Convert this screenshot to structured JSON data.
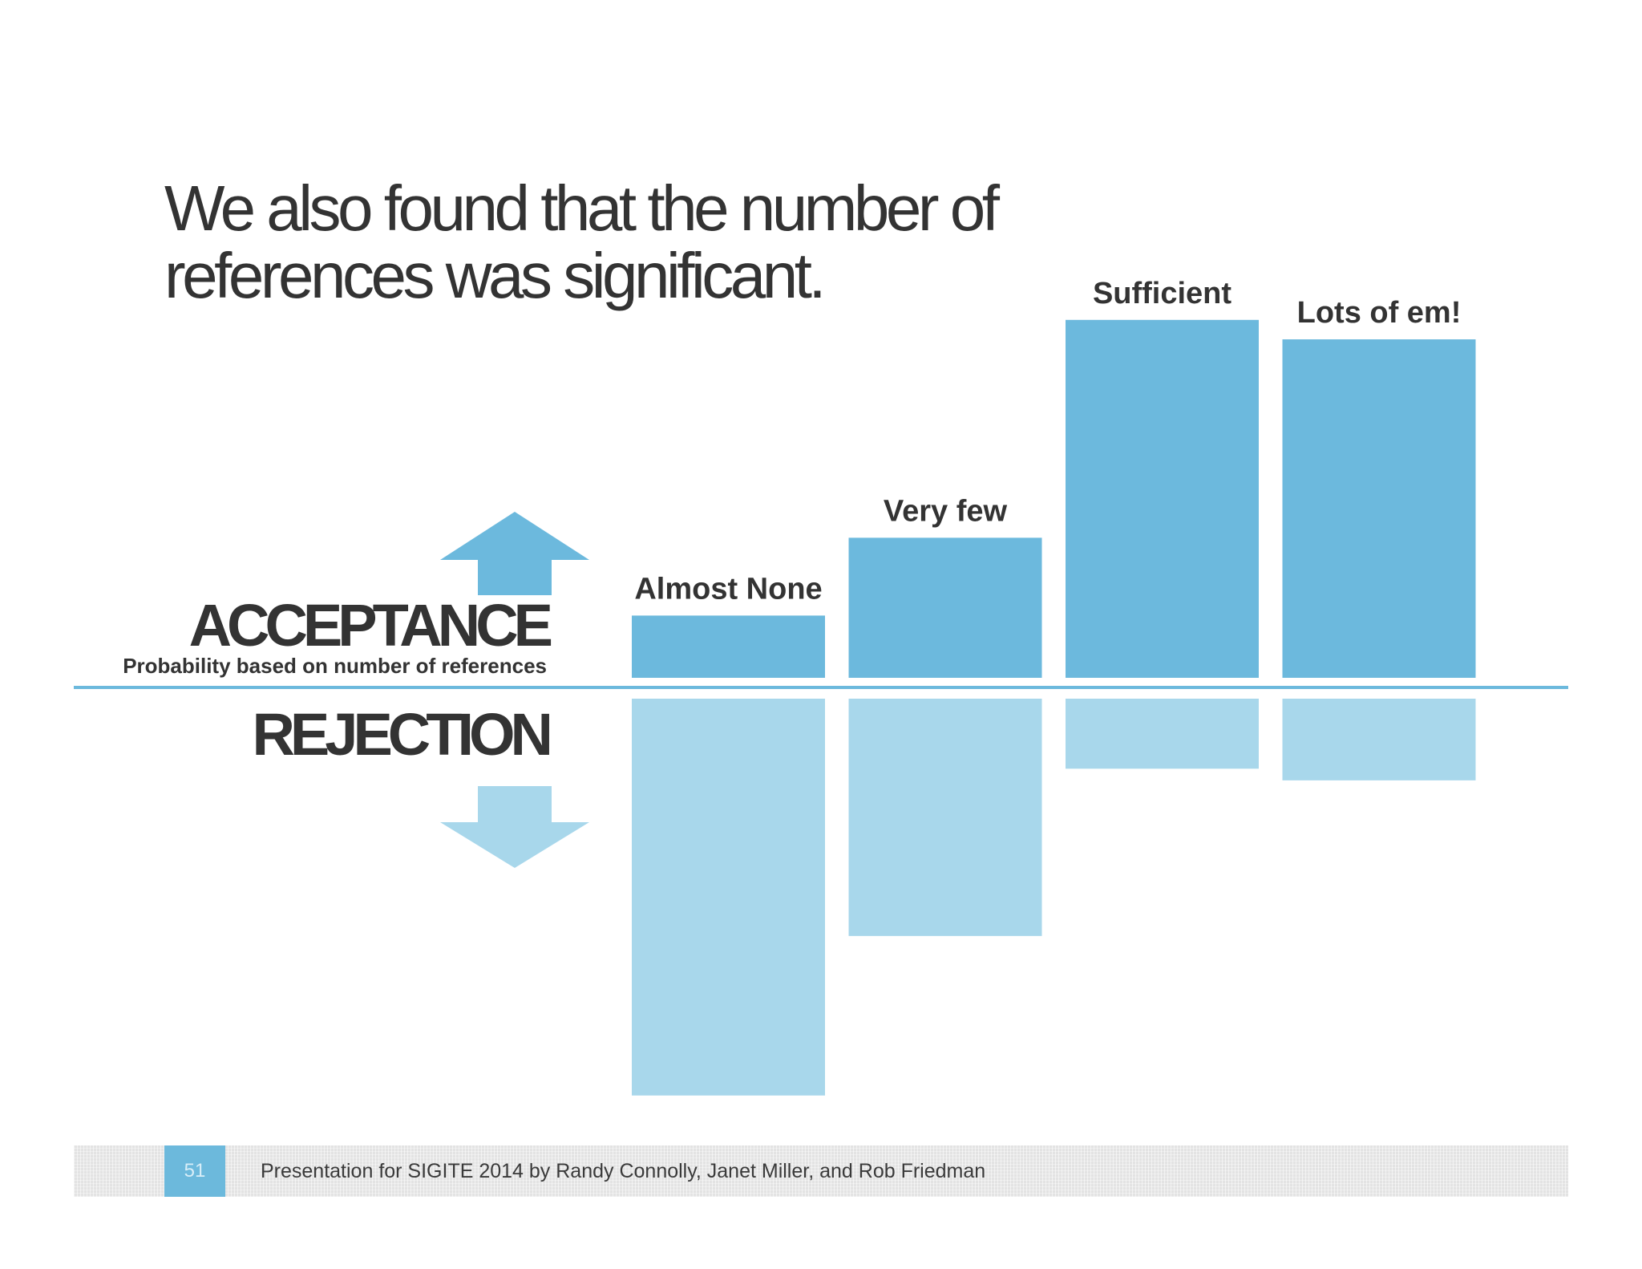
{
  "slide": {
    "title_lines": [
      "We also found that the number of",
      "references was significant."
    ]
  },
  "labels": {
    "acceptance": "ACCEPTANCE",
    "subtitle": "Probability based on number of references",
    "rejection": "REJECTION"
  },
  "footer": {
    "page_number": "51",
    "text": "Presentation for SIGITE 2014 by Randy Connolly, Janet Miller, and Rob Friedman"
  },
  "colors": {
    "acceptance": "#6cb9dd",
    "rejection": "#a8d7eb",
    "baseline": "#6cb9dd",
    "text": "#333333"
  },
  "chart_data": {
    "type": "bar",
    "categories": [
      "Almost None",
      "Very few",
      "Sufficient",
      "Lots of em!"
    ],
    "series": [
      {
        "values": [
          8,
          18,
          46,
          43.5
        ]
      },
      {
        "values": [
          51,
          30.5,
          9,
          10.5
        ]
      }
    ],
    "ylim": [
      -55,
      50
    ],
    "grid": false
  }
}
